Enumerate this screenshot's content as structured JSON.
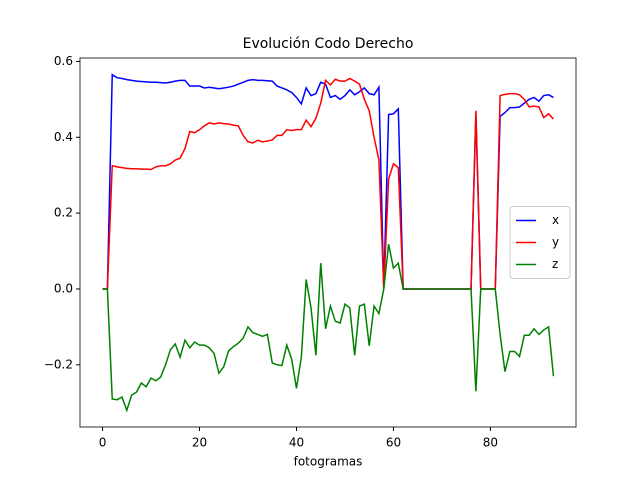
{
  "chart_data": {
    "type": "line",
    "title": "Evolución Codo Derecho",
    "x_label": "fotogramas",
    "x": [
      0,
      1,
      2,
      3,
      4,
      5,
      6,
      7,
      8,
      9,
      10,
      11,
      12,
      13,
      14,
      15,
      16,
      17,
      18,
      19,
      20,
      21,
      22,
      23,
      24,
      25,
      26,
      27,
      28,
      29,
      30,
      31,
      32,
      33,
      34,
      35,
      36,
      37,
      38,
      39,
      40,
      41,
      42,
      43,
      44,
      45,
      46,
      47,
      48,
      49,
      50,
      51,
      52,
      53,
      54,
      55,
      56,
      57,
      58,
      59,
      60,
      61,
      62,
      63,
      64,
      65,
      66,
      67,
      68,
      69,
      70,
      71,
      72,
      73,
      74,
      75,
      76,
      77,
      78,
      79,
      80,
      81,
      82,
      83,
      84,
      85,
      86,
      87,
      88,
      89,
      90,
      91,
      92,
      93
    ],
    "series": [
      {
        "name": "x",
        "color": "#0000ff",
        "values": [
          0,
          0,
          0.565,
          0.557,
          0.555,
          0.552,
          0.55,
          0.548,
          0.547,
          0.546,
          0.545,
          0.545,
          0.544,
          0.543,
          0.545,
          0.548,
          0.55,
          0.55,
          0.535,
          0.535,
          0.535,
          0.53,
          0.532,
          0.53,
          0.528,
          0.53,
          0.532,
          0.535,
          0.54,
          0.545,
          0.55,
          0.552,
          0.55,
          0.55,
          0.549,
          0.548,
          0.535,
          0.53,
          0.525,
          0.518,
          0.505,
          0.488,
          0.53,
          0.51,
          0.515,
          0.545,
          0.54,
          0.505,
          0.51,
          0.5,
          0.51,
          0.525,
          0.512,
          0.52,
          0.53,
          0.515,
          0.512,
          0.532,
          0,
          0.46,
          0.462,
          0.475,
          0,
          0,
          0,
          0,
          0,
          0,
          0,
          0,
          0,
          0,
          0,
          0,
          0,
          0,
          0,
          0.46,
          0,
          0,
          0,
          0,
          0.455,
          0.465,
          0.478,
          0.478,
          0.48,
          0.49,
          0.5,
          0.505,
          0.495,
          0.51,
          0.512,
          0.505
        ]
      },
      {
        "name": "y",
        "color": "#ff0000",
        "values": [
          0,
          0,
          0.325,
          0.322,
          0.32,
          0.318,
          0.317,
          0.317,
          0.316,
          0.316,
          0.315,
          0.322,
          0.325,
          0.325,
          0.33,
          0.34,
          0.345,
          0.37,
          0.415,
          0.412,
          0.42,
          0.43,
          0.438,
          0.435,
          0.438,
          0.436,
          0.435,
          0.432,
          0.43,
          0.405,
          0.388,
          0.385,
          0.392,
          0.388,
          0.39,
          0.393,
          0.405,
          0.405,
          0.42,
          0.418,
          0.42,
          0.42,
          0.445,
          0.428,
          0.45,
          0.49,
          0.55,
          0.538,
          0.553,
          0.548,
          0.548,
          0.555,
          0.548,
          0.54,
          0.5,
          0.47,
          0.4,
          0.34,
          0,
          0.29,
          0.33,
          0.32,
          0,
          0,
          0,
          0,
          0,
          0,
          0,
          0,
          0,
          0,
          0,
          0,
          0,
          0,
          0,
          0.47,
          0,
          0,
          0,
          0,
          0.51,
          0.513,
          0.515,
          0.515,
          0.512,
          0.5,
          0.48,
          0.482,
          0.48,
          0.452,
          0.462,
          0.448
        ]
      },
      {
        "name": "z",
        "color": "#008000",
        "values": [
          0,
          0,
          -0.29,
          -0.292,
          -0.285,
          -0.32,
          -0.28,
          -0.272,
          -0.248,
          -0.258,
          -0.235,
          -0.242,
          -0.232,
          -0.2,
          -0.16,
          -0.145,
          -0.18,
          -0.135,
          -0.155,
          -0.14,
          -0.148,
          -0.148,
          -0.155,
          -0.17,
          -0.222,
          -0.205,
          -0.163,
          -0.152,
          -0.143,
          -0.13,
          -0.1,
          -0.115,
          -0.12,
          -0.125,
          -0.12,
          -0.195,
          -0.2,
          -0.202,
          -0.148,
          -0.185,
          -0.262,
          -0.18,
          0.025,
          -0.05,
          -0.175,
          0.068,
          -0.105,
          -0.045,
          -0.085,
          -0.09,
          -0.04,
          -0.05,
          -0.175,
          -0.045,
          -0.04,
          -0.15,
          -0.045,
          -0.065,
          0,
          0.118,
          0.055,
          0.068,
          0,
          0,
          0,
          0,
          0,
          0,
          0,
          0,
          0,
          0,
          0,
          0,
          0,
          0,
          0,
          -0.27,
          0,
          0,
          0,
          0,
          -0.12,
          -0.218,
          -0.165,
          -0.165,
          -0.178,
          -0.122,
          -0.122,
          -0.105,
          -0.12,
          -0.108,
          -0.1,
          -0.23
        ]
      }
    ],
    "xlim": [
      -4.65,
      97.65
    ],
    "ylim": [
      -0.364,
      0.609
    ],
    "xticks": [
      0,
      20,
      40,
      60,
      80
    ],
    "yticks": [
      {
        "value": -0.2,
        "label": "−0.2"
      },
      {
        "value": 0,
        "label": "0.0"
      },
      0.2,
      0.4,
      0.6
    ],
    "legend": "center right"
  }
}
